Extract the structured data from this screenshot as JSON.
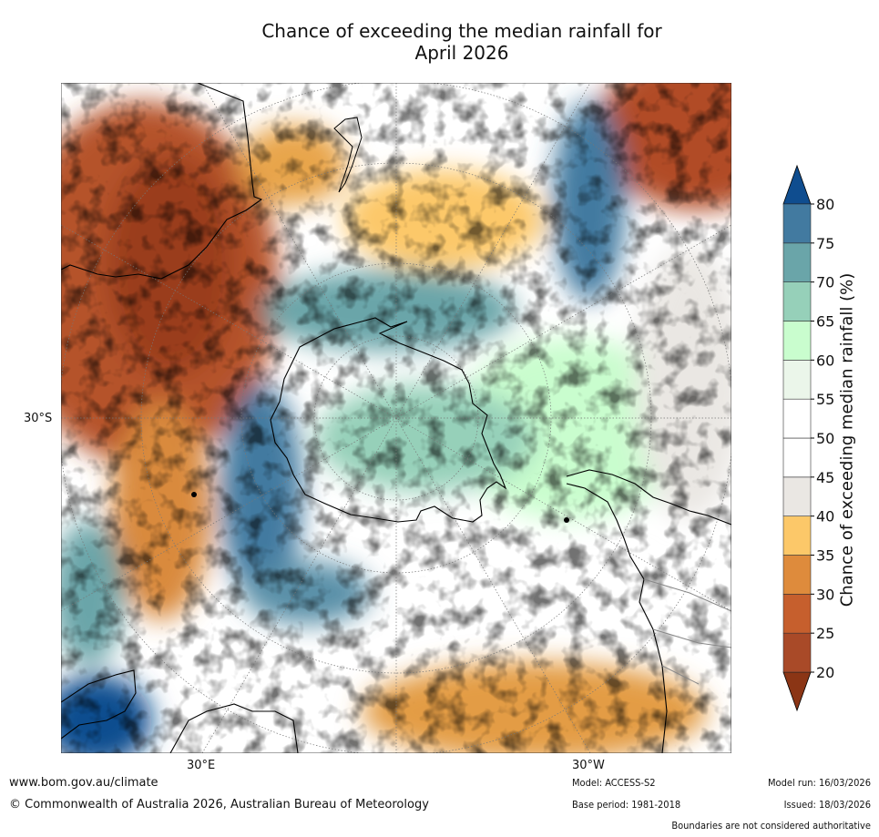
{
  "title": {
    "line1": "Chance of exceeding the median rainfall for",
    "line2": "April 2026"
  },
  "map": {
    "projection": "south-polar-stereographic",
    "lat_label": "30°S",
    "lon_labels": [
      "30°E",
      "30°W"
    ]
  },
  "colorbar": {
    "label": "Chance of exceeding median rainfall (%)",
    "ticks": [
      "20",
      "25",
      "30",
      "35",
      "40",
      "45",
      "50",
      "55",
      "60",
      "65",
      "70",
      "75",
      "80"
    ],
    "colors": [
      "#8b3515",
      "#a94a28",
      "#c65f2d",
      "#de8b3c",
      "#fcc869",
      "#eae7e3",
      "#ffffff",
      "#ffffff",
      "#ebf6ea",
      "#c9fdce",
      "#96d0b9",
      "#6aa5a9",
      "#427aa0",
      "#0f4d8f"
    ]
  },
  "footer": {
    "website": "www.bom.gov.au/climate",
    "copyright": "© Commonwealth of Australia 2026, Australian Bureau of Meteorology",
    "model": "Model: ACCESS-S2",
    "base_period": "Base period: 1981-2018",
    "model_run": "Model run: 16/03/2026",
    "issued": "Issued: 18/03/2026",
    "disclaimer": "Boundaries are not considered authoritative"
  }
}
